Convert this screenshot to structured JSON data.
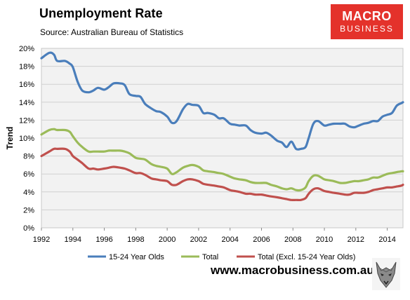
{
  "header": {
    "title": "Unemployment Rate",
    "source": "Source: Australian Bureau of Statistics"
  },
  "brand": {
    "line1": "MACRO",
    "line2": "BUSINESS"
  },
  "footer": {
    "website": "www.macrobusiness.com.au"
  },
  "chart_data": {
    "type": "line",
    "ylabel": "Trend",
    "xlim": [
      1992,
      2015
    ],
    "ylim": [
      0,
      20
    ],
    "grid": true,
    "legend": "bottom",
    "x_ticks": [
      "1992",
      "1994",
      "1996",
      "1998",
      "2000",
      "2002",
      "2004",
      "2006",
      "2008",
      "2010",
      "2012",
      "2014"
    ],
    "y_ticks": [
      "0%",
      "2%",
      "4%",
      "6%",
      "8%",
      "10%",
      "12%",
      "14%",
      "16%",
      "18%",
      "20%"
    ],
    "series": [
      {
        "name": "15-24 Year Olds",
        "color": "#4a7ebb",
        "points": [
          [
            1992.0,
            18.9
          ],
          [
            1992.5,
            19.5
          ],
          [
            1992.8,
            19.3
          ],
          [
            1993.0,
            18.6
          ],
          [
            1993.5,
            18.6
          ],
          [
            1993.8,
            18.3
          ],
          [
            1994.0,
            17.9
          ],
          [
            1994.3,
            16.3
          ],
          [
            1994.6,
            15.3
          ],
          [
            1995.0,
            15.1
          ],
          [
            1995.3,
            15.3
          ],
          [
            1995.6,
            15.6
          ],
          [
            1996.0,
            15.4
          ],
          [
            1996.3,
            15.7
          ],
          [
            1996.6,
            16.1
          ],
          [
            1997.0,
            16.1
          ],
          [
            1997.3,
            15.9
          ],
          [
            1997.6,
            14.9
          ],
          [
            1998.0,
            14.7
          ],
          [
            1998.3,
            14.6
          ],
          [
            1998.6,
            13.8
          ],
          [
            1999.0,
            13.3
          ],
          [
            1999.3,
            13.0
          ],
          [
            1999.6,
            12.9
          ],
          [
            2000.0,
            12.4
          ],
          [
            2000.3,
            11.7
          ],
          [
            2000.6,
            11.9
          ],
          [
            2001.0,
            13.2
          ],
          [
            2001.3,
            13.8
          ],
          [
            2001.6,
            13.7
          ],
          [
            2002.0,
            13.6
          ],
          [
            2002.3,
            12.8
          ],
          [
            2002.6,
            12.8
          ],
          [
            2003.0,
            12.6
          ],
          [
            2003.3,
            12.2
          ],
          [
            2003.6,
            12.2
          ],
          [
            2004.0,
            11.6
          ],
          [
            2004.3,
            11.5
          ],
          [
            2004.6,
            11.4
          ],
          [
            2005.0,
            11.4
          ],
          [
            2005.3,
            10.9
          ],
          [
            2005.6,
            10.6
          ],
          [
            2006.0,
            10.5
          ],
          [
            2006.3,
            10.6
          ],
          [
            2006.6,
            10.3
          ],
          [
            2007.0,
            9.7
          ],
          [
            2007.3,
            9.5
          ],
          [
            2007.6,
            9.0
          ],
          [
            2007.9,
            9.6
          ],
          [
            2008.2,
            8.8
          ],
          [
            2008.5,
            8.8
          ],
          [
            2008.8,
            9.0
          ],
          [
            2009.0,
            10.0
          ],
          [
            2009.3,
            11.6
          ],
          [
            2009.6,
            11.9
          ],
          [
            2010.0,
            11.4
          ],
          [
            2010.3,
            11.5
          ],
          [
            2010.6,
            11.6
          ],
          [
            2011.0,
            11.6
          ],
          [
            2011.3,
            11.6
          ],
          [
            2011.6,
            11.3
          ],
          [
            2011.9,
            11.2
          ],
          [
            2012.2,
            11.4
          ],
          [
            2012.5,
            11.6
          ],
          [
            2012.8,
            11.7
          ],
          [
            2013.1,
            11.9
          ],
          [
            2013.4,
            11.9
          ],
          [
            2013.7,
            12.4
          ],
          [
            2014.0,
            12.6
          ],
          [
            2014.3,
            12.8
          ],
          [
            2014.6,
            13.6
          ],
          [
            2014.9,
            13.9
          ],
          [
            2015.0,
            14.0
          ]
        ]
      },
      {
        "name": "Total",
        "color": "#9bbb59",
        "points": [
          [
            1992.0,
            10.4
          ],
          [
            1992.5,
            10.9
          ],
          [
            1992.8,
            11.0
          ],
          [
            1993.0,
            10.9
          ],
          [
            1993.5,
            10.9
          ],
          [
            1993.8,
            10.7
          ],
          [
            1994.0,
            10.2
          ],
          [
            1994.3,
            9.5
          ],
          [
            1994.6,
            9.0
          ],
          [
            1995.0,
            8.5
          ],
          [
            1995.3,
            8.5
          ],
          [
            1995.6,
            8.5
          ],
          [
            1996.0,
            8.5
          ],
          [
            1996.3,
            8.6
          ],
          [
            1996.6,
            8.6
          ],
          [
            1997.0,
            8.6
          ],
          [
            1997.3,
            8.5
          ],
          [
            1997.6,
            8.3
          ],
          [
            1998.0,
            7.8
          ],
          [
            1998.3,
            7.7
          ],
          [
            1998.6,
            7.6
          ],
          [
            1999.0,
            7.1
          ],
          [
            1999.3,
            6.9
          ],
          [
            1999.6,
            6.8
          ],
          [
            2000.0,
            6.6
          ],
          [
            2000.3,
            6.0
          ],
          [
            2000.6,
            6.2
          ],
          [
            2001.0,
            6.7
          ],
          [
            2001.3,
            6.9
          ],
          [
            2001.6,
            7.0
          ],
          [
            2002.0,
            6.8
          ],
          [
            2002.3,
            6.4
          ],
          [
            2002.6,
            6.3
          ],
          [
            2003.0,
            6.2
          ],
          [
            2003.3,
            6.1
          ],
          [
            2003.6,
            6.0
          ],
          [
            2004.0,
            5.7
          ],
          [
            2004.3,
            5.5
          ],
          [
            2004.6,
            5.4
          ],
          [
            2005.0,
            5.3
          ],
          [
            2005.3,
            5.1
          ],
          [
            2005.6,
            5.0
          ],
          [
            2006.0,
            5.0
          ],
          [
            2006.3,
            5.0
          ],
          [
            2006.6,
            4.8
          ],
          [
            2007.0,
            4.6
          ],
          [
            2007.3,
            4.4
          ],
          [
            2007.6,
            4.3
          ],
          [
            2007.9,
            4.4
          ],
          [
            2008.2,
            4.2
          ],
          [
            2008.5,
            4.2
          ],
          [
            2008.8,
            4.5
          ],
          [
            2009.0,
            5.2
          ],
          [
            2009.3,
            5.8
          ],
          [
            2009.6,
            5.8
          ],
          [
            2010.0,
            5.4
          ],
          [
            2010.3,
            5.3
          ],
          [
            2010.6,
            5.2
          ],
          [
            2011.0,
            5.0
          ],
          [
            2011.3,
            5.0
          ],
          [
            2011.6,
            5.1
          ],
          [
            2011.9,
            5.2
          ],
          [
            2012.2,
            5.2
          ],
          [
            2012.5,
            5.3
          ],
          [
            2012.8,
            5.4
          ],
          [
            2013.1,
            5.6
          ],
          [
            2013.4,
            5.6
          ],
          [
            2013.7,
            5.8
          ],
          [
            2014.0,
            6.0
          ],
          [
            2014.3,
            6.1
          ],
          [
            2014.6,
            6.2
          ],
          [
            2014.9,
            6.3
          ],
          [
            2015.0,
            6.3
          ]
        ]
      },
      {
        "name": "Total (Excl. 15-24 Year Olds)",
        "color": "#c0504d",
        "points": [
          [
            1992.0,
            8.0
          ],
          [
            1992.5,
            8.5
          ],
          [
            1992.8,
            8.8
          ],
          [
            1993.0,
            8.8
          ],
          [
            1993.5,
            8.8
          ],
          [
            1993.8,
            8.5
          ],
          [
            1994.0,
            8.0
          ],
          [
            1994.3,
            7.6
          ],
          [
            1994.6,
            7.2
          ],
          [
            1995.0,
            6.6
          ],
          [
            1995.3,
            6.6
          ],
          [
            1995.6,
            6.5
          ],
          [
            1996.0,
            6.6
          ],
          [
            1996.3,
            6.7
          ],
          [
            1996.6,
            6.8
          ],
          [
            1997.0,
            6.7
          ],
          [
            1997.3,
            6.6
          ],
          [
            1997.6,
            6.4
          ],
          [
            1998.0,
            6.1
          ],
          [
            1998.3,
            6.1
          ],
          [
            1998.6,
            5.9
          ],
          [
            1999.0,
            5.5
          ],
          [
            1999.3,
            5.4
          ],
          [
            1999.6,
            5.3
          ],
          [
            2000.0,
            5.2
          ],
          [
            2000.3,
            4.8
          ],
          [
            2000.6,
            4.8
          ],
          [
            2001.0,
            5.2
          ],
          [
            2001.3,
            5.4
          ],
          [
            2001.6,
            5.4
          ],
          [
            2002.0,
            5.2
          ],
          [
            2002.3,
            4.9
          ],
          [
            2002.6,
            4.8
          ],
          [
            2003.0,
            4.7
          ],
          [
            2003.3,
            4.6
          ],
          [
            2003.6,
            4.5
          ],
          [
            2004.0,
            4.2
          ],
          [
            2004.3,
            4.1
          ],
          [
            2004.6,
            4.0
          ],
          [
            2005.0,
            3.8
          ],
          [
            2005.3,
            3.8
          ],
          [
            2005.6,
            3.7
          ],
          [
            2006.0,
            3.7
          ],
          [
            2006.3,
            3.6
          ],
          [
            2006.6,
            3.5
          ],
          [
            2007.0,
            3.4
          ],
          [
            2007.3,
            3.3
          ],
          [
            2007.6,
            3.2
          ],
          [
            2007.9,
            3.1
          ],
          [
            2008.2,
            3.1
          ],
          [
            2008.5,
            3.1
          ],
          [
            2008.8,
            3.3
          ],
          [
            2009.0,
            3.8
          ],
          [
            2009.3,
            4.3
          ],
          [
            2009.6,
            4.4
          ],
          [
            2010.0,
            4.1
          ],
          [
            2010.3,
            4.0
          ],
          [
            2010.6,
            3.9
          ],
          [
            2011.0,
            3.8
          ],
          [
            2011.3,
            3.7
          ],
          [
            2011.6,
            3.7
          ],
          [
            2011.9,
            3.9
          ],
          [
            2012.2,
            3.9
          ],
          [
            2012.5,
            3.9
          ],
          [
            2012.8,
            4.0
          ],
          [
            2013.1,
            4.2
          ],
          [
            2013.4,
            4.3
          ],
          [
            2013.7,
            4.4
          ],
          [
            2014.0,
            4.5
          ],
          [
            2014.3,
            4.5
          ],
          [
            2014.6,
            4.6
          ],
          [
            2014.9,
            4.7
          ],
          [
            2015.0,
            4.8
          ]
        ]
      }
    ]
  }
}
